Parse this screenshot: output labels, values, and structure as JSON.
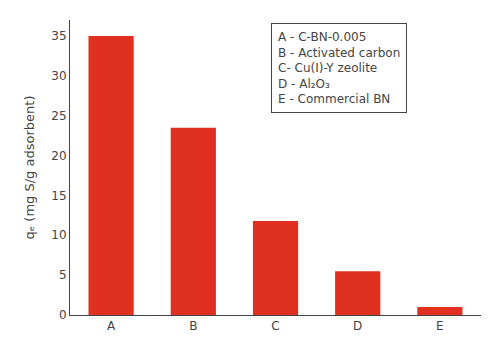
{
  "chart_data": {
    "type": "bar",
    "categories": [
      "A",
      "B",
      "C",
      "D",
      "E"
    ],
    "values": [
      35.0,
      23.5,
      11.8,
      5.5,
      1.0
    ],
    "color": "#e03020",
    "ylabel": "qₑ (mg S/g adsorbent)",
    "ylim": [
      0,
      37
    ],
    "yticks": [
      0,
      5,
      10,
      15,
      20,
      25,
      30,
      35
    ],
    "grid": false,
    "annotations": [
      "A - C-BN-0.005",
      "B - Activated carbon",
      "C- Cu(I)-Y zeolite",
      "D - Al₂O₃",
      "E - Commercial BN"
    ]
  }
}
